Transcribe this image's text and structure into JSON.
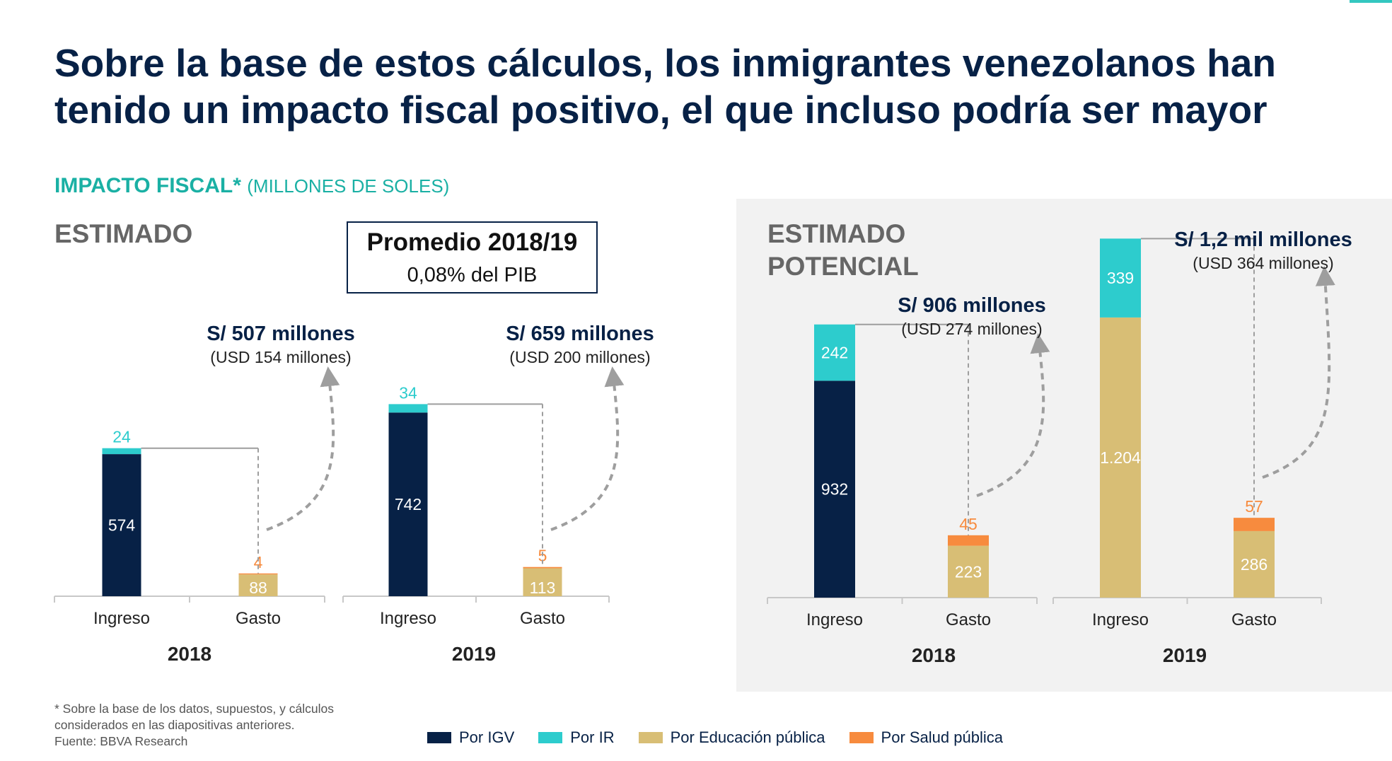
{
  "title": "Sobre la base de estos cálculos, los inmigrantes venezolanos han tenido un impacto fiscal positivo, el que incluso podría ser mayor",
  "subtitle": {
    "main": "IMPACTO FISCAL*",
    "unit": "(MILLONES DE SOLES)"
  },
  "sections": {
    "estimated": "ESTIMADO",
    "potential": "ESTIMADO POTENCIAL"
  },
  "average_box": {
    "title": "Promedio 2018/19",
    "value": "0,08% del PIB"
  },
  "colors": {
    "igv": "#072146",
    "ir": "#2DCCCD",
    "edu": "#D8BE75",
    "salud": "#F78B3E",
    "teal": "#1AB0A4",
    "navy": "#072146"
  },
  "chart_data": [
    {
      "type": "bar",
      "stacked": true,
      "panel": "ESTIMADO",
      "groups": [
        {
          "year": "2018",
          "categories": [
            "Ingreso",
            "Gasto"
          ],
          "series": [
            {
              "name": "Por IGV",
              "values": [
                574,
                0
              ]
            },
            {
              "name": "Por IR",
              "values": [
                24,
                0
              ]
            },
            {
              "name": "Por Educación pública",
              "values": [
                0,
                88
              ]
            },
            {
              "name": "Por Salud pública",
              "values": [
                0,
                4
              ]
            }
          ],
          "net_label": "S/ 507 millones",
          "net_usd": "(USD 154 millones)"
        },
        {
          "year": "2019",
          "categories": [
            "Ingreso",
            "Gasto"
          ],
          "series": [
            {
              "name": "Por IGV",
              "values": [
                742,
                0
              ]
            },
            {
              "name": "Por IR",
              "values": [
                34,
                0
              ]
            },
            {
              "name": "Por Educación pública",
              "values": [
                0,
                113
              ]
            },
            {
              "name": "Por Salud pública",
              "values": [
                0,
                5
              ]
            }
          ],
          "net_label": "S/ 659 millones",
          "net_usd": "(USD 200 millones)"
        }
      ]
    },
    {
      "type": "bar",
      "stacked": true,
      "panel": "ESTIMADO POTENCIAL",
      "groups": [
        {
          "year": "2018",
          "categories": [
            "Ingreso",
            "Gasto"
          ],
          "series": [
            {
              "name": "Por IGV",
              "values": [
                932,
                0
              ]
            },
            {
              "name": "Por IR",
              "values": [
                242,
                0
              ]
            },
            {
              "name": "Por Educación pública",
              "values": [
                0,
                223
              ]
            },
            {
              "name": "Por Salud pública",
              "values": [
                0,
                45
              ]
            }
          ],
          "net_label": "S/ 906 millones",
          "net_usd": "(USD 274 millones)"
        },
        {
          "year": "2019",
          "categories": [
            "Ingreso",
            "Gasto"
          ],
          "series": [
            {
              "name": "Por Educación pública (ingreso)",
              "values": [
                1204,
                0
              ]
            },
            {
              "name": "Por IR",
              "values": [
                339,
                0
              ]
            },
            {
              "name": "Por Educación pública",
              "values": [
                0,
                286
              ]
            },
            {
              "name": "Por Salud pública",
              "values": [
                0,
                57
              ]
            }
          ],
          "value_labels_override": {
            "1204": "1.204"
          },
          "net_label": "S/ 1,2 mil millones",
          "net_usd": "(USD 364 millones)"
        }
      ]
    }
  ],
  "legend": [
    {
      "label": "Por IGV",
      "color": "#072146"
    },
    {
      "label": "Por IR",
      "color": "#2DCCCD"
    },
    {
      "label": "Por Educación pública",
      "color": "#D8BE75"
    },
    {
      "label": "Por Salud pública",
      "color": "#F78B3E"
    }
  ],
  "footnote": {
    "line1": "* Sobre la base de los datos, supuestos, y cálculos",
    "line2": "considerados en las diapositivas anteriores.",
    "line3": "Fuente: BBVA Research"
  }
}
